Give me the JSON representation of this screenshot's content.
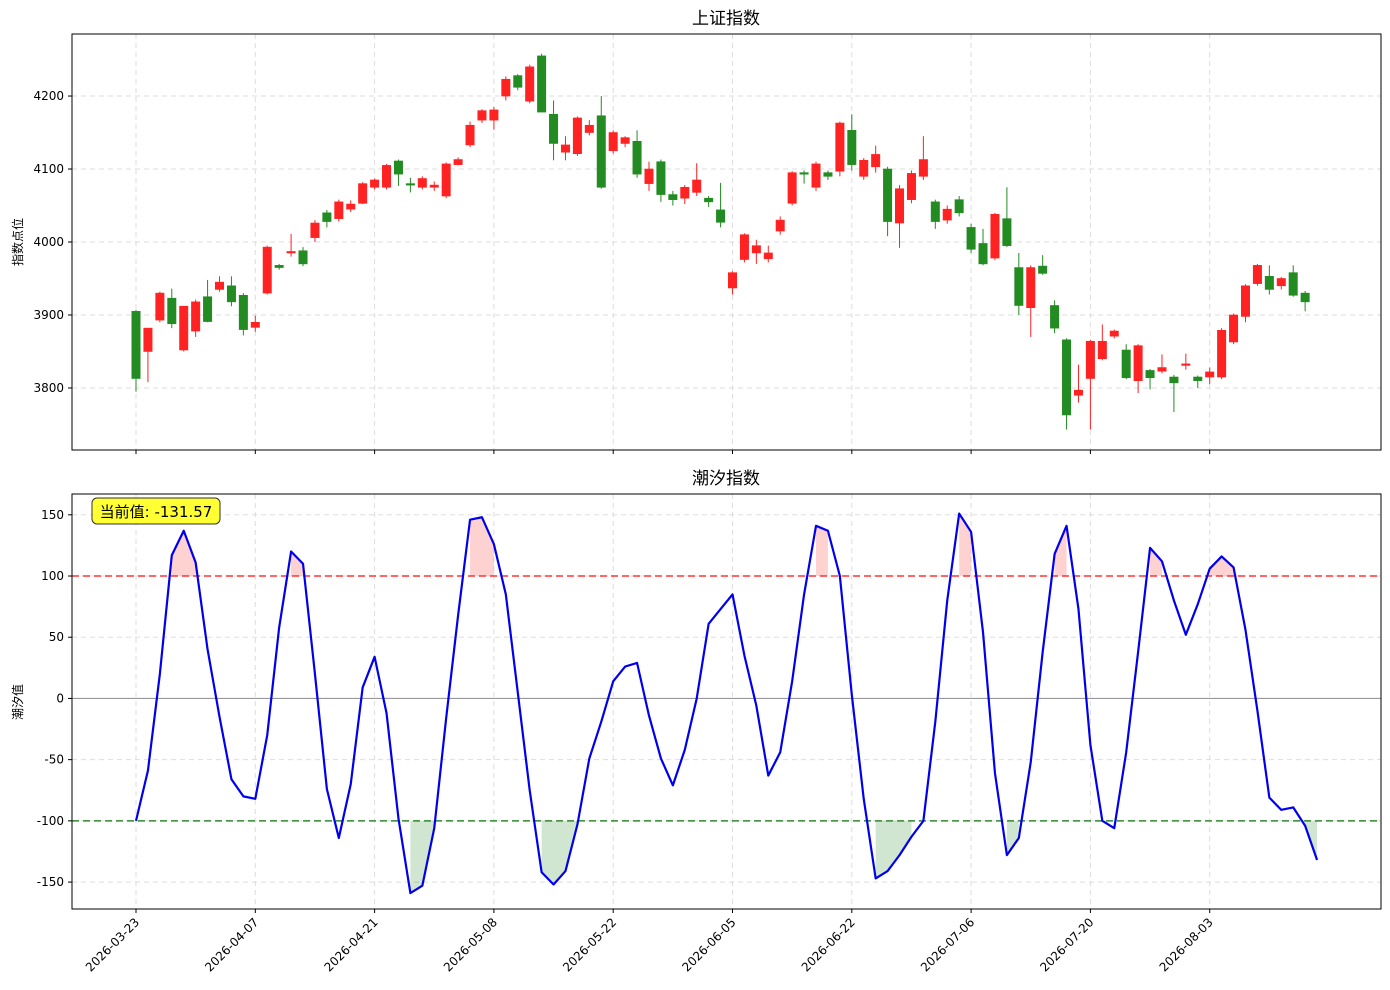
{
  "chart_data": [
    {
      "type": "candlestick",
      "title": "上证指数",
      "xlabel": "",
      "ylabel": "指数点位",
      "ylim": [
        3715,
        4285
      ],
      "yticks": [
        3800,
        3900,
        4000,
        4100,
        4200
      ],
      "grid": true,
      "colors": {
        "up": "#ff2222",
        "down": "#228b22"
      },
      "ohlc": [
        [
          3905,
          3813,
          3795,
          3907
        ],
        [
          3850,
          3882,
          3808,
          3882
        ],
        [
          3893,
          3930,
          3890,
          3932
        ],
        [
          3923,
          3888,
          3882,
          3936
        ],
        [
          3852,
          3912,
          3850,
          3912
        ],
        [
          3878,
          3918,
          3870,
          3921
        ],
        [
          3925,
          3891,
          3890,
          3948
        ],
        [
          3935,
          3945,
          3932,
          3953
        ],
        [
          3940,
          3918,
          3912,
          3953
        ],
        [
          3927,
          3880,
          3872,
          3930
        ],
        [
          3883,
          3890,
          3877,
          3899
        ],
        [
          3930,
          3993,
          3928,
          3995
        ],
        [
          3968,
          3965,
          3962,
          3970
        ],
        [
          3986,
          3987,
          3980,
          4011
        ],
        [
          3988,
          3970,
          3967,
          3993
        ],
        [
          4006,
          4026,
          4000,
          4030
        ],
        [
          4040,
          4028,
          4020,
          4044
        ],
        [
          4032,
          4055,
          4028,
          4058
        ],
        [
          4045,
          4052,
          4041,
          4057
        ],
        [
          4053,
          4080,
          4052,
          4082
        ],
        [
          4075,
          4085,
          4072,
          4087
        ],
        [
          4075,
          4105,
          4072,
          4107
        ],
        [
          4111,
          4093,
          4077,
          4113
        ],
        [
          4080,
          4078,
          4068,
          4088
        ],
        [
          4075,
          4087,
          4072,
          4090
        ],
        [
          4075,
          4078,
          4070,
          4083
        ],
        [
          4063,
          4107,
          4060,
          4109
        ],
        [
          4106,
          4113,
          4105,
          4116
        ],
        [
          4133,
          4160,
          4130,
          4165
        ],
        [
          4167,
          4180,
          4163,
          4182
        ],
        [
          4167,
          4181,
          4154,
          4185
        ],
        [
          4200,
          4223,
          4194,
          4227
        ],
        [
          4228,
          4212,
          4208,
          4230
        ],
        [
          4193,
          4240,
          4190,
          4243
        ],
        [
          4255,
          4178,
          4178,
          4258
        ],
        [
          4175,
          4135,
          4112,
          4194
        ],
        [
          4123,
          4133,
          4112,
          4145
        ],
        [
          4121,
          4170,
          4118,
          4172
        ],
        [
          4150,
          4160,
          4146,
          4167
        ],
        [
          4173,
          4075,
          4073,
          4200
        ],
        [
          4125,
          4150,
          4121,
          4153
        ],
        [
          4135,
          4143,
          4130,
          4145
        ],
        [
          4138,
          4093,
          4088,
          4153
        ],
        [
          4080,
          4100,
          4070,
          4110
        ],
        [
          4110,
          4065,
          4055,
          4113
        ],
        [
          4065,
          4058,
          4050,
          4070
        ],
        [
          4060,
          4075,
          4052,
          4078
        ],
        [
          4068,
          4085,
          4063,
          4108
        ],
        [
          4060,
          4055,
          4048,
          4063
        ],
        [
          4044,
          4027,
          4020,
          4081
        ],
        [
          3937,
          3958,
          3928,
          3960
        ],
        [
          3976,
          4010,
          3972,
          4012
        ],
        [
          3985,
          3995,
          3970,
          4003
        ],
        [
          3977,
          3985,
          3972,
          3995
        ],
        [
          4015,
          4030,
          4010,
          4035
        ],
        [
          4053,
          4095,
          4050,
          4097
        ],
        [
          4095,
          4093,
          4080,
          4098
        ],
        [
          4075,
          4107,
          4070,
          4110
        ],
        [
          4095,
          4090,
          4085,
          4098
        ],
        [
          4097,
          4163,
          4090,
          4165
        ],
        [
          4153,
          4106,
          4098,
          4175
        ],
        [
          4090,
          4112,
          4085,
          4115
        ],
        [
          4103,
          4120,
          4095,
          4132
        ],
        [
          4100,
          4028,
          4008,
          4103
        ],
        [
          4026,
          4073,
          3992,
          4078
        ],
        [
          4058,
          4094,
          4053,
          4098
        ],
        [
          4090,
          4113,
          4085,
          4145
        ],
        [
          4055,
          4028,
          4018,
          4058
        ],
        [
          4030,
          4045,
          4025,
          4050
        ],
        [
          4058,
          4040,
          4035,
          4063
        ],
        [
          4020,
          3990,
          3985,
          4025
        ],
        [
          3998,
          3970,
          3968,
          4018
        ],
        [
          3978,
          4038,
          3975,
          4040
        ],
        [
          4032,
          3995,
          3993,
          4075
        ],
        [
          3965,
          3913,
          3900,
          3985
        ],
        [
          3910,
          3965,
          3870,
          3968
        ],
        [
          3967,
          3957,
          3955,
          3982
        ],
        [
          3913,
          3882,
          3875,
          3920
        ],
        [
          3866,
          3763,
          3743,
          3868
        ],
        [
          3790,
          3797,
          3780,
          3832
        ],
        [
          3813,
          3864,
          3743,
          3866
        ],
        [
          3840,
          3864,
          3838,
          3887
        ],
        [
          3871,
          3878,
          3868,
          3880
        ],
        [
          3852,
          3814,
          3812,
          3860
        ],
        [
          3810,
          3858,
          3793,
          3860
        ],
        [
          3824,
          3814,
          3798,
          3826
        ],
        [
          3823,
          3828,
          3820,
          3846
        ],
        [
          3815,
          3807,
          3767,
          3818
        ],
        [
          3833,
          3833,
          3825,
          3847
        ],
        [
          3815,
          3810,
          3800,
          3817
        ],
        [
          3815,
          3822,
          3805,
          3828
        ],
        [
          3815,
          3879,
          3812,
          3882
        ],
        [
          3863,
          3900,
          3860,
          3902
        ],
        [
          3898,
          3940,
          3890,
          3942
        ],
        [
          3943,
          3968,
          3940,
          3970
        ],
        [
          3953,
          3935,
          3928,
          3968
        ],
        [
          3940,
          3950,
          3935,
          3952
        ],
        [
          3958,
          3927,
          3925,
          3968
        ],
        [
          3930,
          3918,
          3905,
          3933
        ]
      ],
      "xticks": [
        "2026-03-23",
        "2026-04-07",
        "2026-04-21",
        "2026-05-08",
        "2026-05-22",
        "2026-06-05",
        "2026-06-22",
        "2026-07-06",
        "2026-07-20",
        "2026-08-03"
      ],
      "xtick_index": [
        0,
        10,
        20,
        30,
        40,
        50,
        60,
        70,
        80,
        90
      ]
    },
    {
      "type": "line",
      "title": "潮汐指数",
      "xlabel": "",
      "ylabel": "潮汐值",
      "ylim": [
        -172,
        167
      ],
      "yticks": [
        150,
        100,
        50,
        0,
        -50,
        -100,
        -150
      ],
      "grid": true,
      "upper_threshold": 100,
      "lower_threshold": -100,
      "colors": {
        "line": "#0000ee",
        "upper": "#ff3333",
        "lower": "#2e8b2e",
        "zero": "#999999"
      },
      "current_value_label": "当前值: -131.57",
      "values": [
        -100,
        -59,
        20,
        117,
        137,
        111,
        40,
        -15,
        -66,
        -80,
        -82,
        -30,
        58,
        120,
        110,
        20,
        -74,
        -114,
        -70,
        9,
        34,
        -12,
        -98,
        -159,
        -153,
        -106,
        -16,
        68,
        146,
        148,
        126,
        85,
        5,
        -75,
        -142,
        -152,
        -141,
        -103,
        -49,
        -19,
        14,
        26,
        29,
        -14,
        -49,
        -71,
        -42,
        0,
        61,
        73,
        85,
        35,
        -6,
        -63,
        -44,
        14,
        85,
        141,
        137,
        100,
        3,
        -82,
        -147,
        -141,
        -128,
        -113,
        -100,
        -19,
        80,
        151,
        136,
        54,
        -61,
        -128,
        -114,
        -52,
        38,
        118,
        141,
        73,
        -38,
        -100,
        -106,
        -44,
        38,
        123,
        112,
        80,
        52,
        77,
        106,
        116,
        107,
        56,
        -10,
        -81,
        -91,
        -89,
        -104,
        -132
      ],
      "xticks": [
        "2026-03-23",
        "2026-04-07",
        "2026-04-21",
        "2026-05-08",
        "2026-05-22",
        "2026-06-05",
        "2026-06-22",
        "2026-07-06",
        "2026-07-20",
        "2026-08-03"
      ],
      "xtick_index": [
        0,
        10,
        20,
        30,
        40,
        50,
        60,
        70,
        80,
        90
      ]
    }
  ]
}
